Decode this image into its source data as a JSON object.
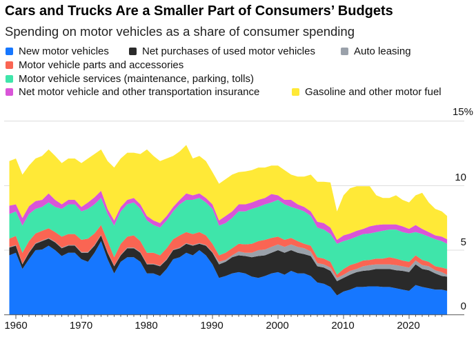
{
  "chart_data": {
    "type": "area",
    "stacked": true,
    "title": "Cars and Trucks Are a Smaller Part of Consumers’ Budgets",
    "subtitle": "Spending on motor vehicles as a share of consumer spending",
    "xlabel": "",
    "ylabel": "",
    "ylim": [
      0,
      15
    ],
    "xlim": [
      1959,
      2026
    ],
    "y_ticks": [
      "0",
      "5",
      "10",
      "15%"
    ],
    "x_ticks": [
      "1960",
      "1970",
      "1980",
      "1990",
      "2000",
      "2010",
      "2020"
    ],
    "grid": "horizontal",
    "legend_position": "top",
    "x": [
      1959,
      1960,
      1961,
      1962,
      1963,
      1964,
      1965,
      1966,
      1967,
      1968,
      1969,
      1970,
      1971,
      1972,
      1973,
      1974,
      1975,
      1976,
      1977,
      1978,
      1979,
      1980,
      1981,
      1982,
      1983,
      1984,
      1985,
      1986,
      1987,
      1988,
      1989,
      1990,
      1991,
      1992,
      1993,
      1994,
      1995,
      1996,
      1997,
      1998,
      1999,
      2000,
      2001,
      2002,
      2003,
      2004,
      2005,
      2006,
      2007,
      2008,
      2009,
      2010,
      2011,
      2012,
      2013,
      2014,
      2015,
      2016,
      2017,
      2018,
      2019,
      2020,
      2021,
      2022,
      2023,
      2024,
      2025,
      2025.8
    ],
    "series": [
      {
        "name": "New motor vehicles",
        "color": "#1677ff",
        "values": [
          4.6,
          4.8,
          3.55,
          4.3,
          5.0,
          5.05,
          5.35,
          5.0,
          4.55,
          4.8,
          4.8,
          4.3,
          4.1,
          4.8,
          5.7,
          4.3,
          3.2,
          4.1,
          4.45,
          4.45,
          4.1,
          3.2,
          3.2,
          3.0,
          3.55,
          4.3,
          4.45,
          4.8,
          4.6,
          5.0,
          4.6,
          3.9,
          2.85,
          3.0,
          3.2,
          3.3,
          3.2,
          2.95,
          2.85,
          3.0,
          3.2,
          3.3,
          3.1,
          3.4,
          3.2,
          3.2,
          3.0,
          2.5,
          2.4,
          2.15,
          1.5,
          1.8,
          1.95,
          2.15,
          2.15,
          2.2,
          2.2,
          2.15,
          2.15,
          2.05,
          1.95,
          1.85,
          2.3,
          2.15,
          2.05,
          1.95,
          1.95,
          1.85
        ]
      },
      {
        "name": "Net purchases of used motor vehicles",
        "color": "#2a2a2a",
        "values": [
          0.6,
          0.55,
          0.35,
          0.5,
          0.5,
          0.65,
          0.55,
          0.6,
          0.6,
          0.55,
          0.55,
          0.5,
          0.7,
          0.55,
          0.45,
          0.5,
          0.55,
          0.5,
          0.7,
          0.7,
          0.7,
          0.7,
          0.7,
          0.75,
          0.7,
          0.7,
          0.7,
          0.7,
          0.75,
          0.5,
          0.75,
          0.9,
          1.05,
          1.1,
          1.25,
          1.3,
          1.35,
          1.5,
          1.7,
          1.6,
          1.6,
          1.7,
          1.7,
          1.6,
          1.6,
          1.5,
          1.55,
          1.25,
          1.25,
          1.25,
          1.1,
          1.05,
          1.15,
          1.15,
          1.25,
          1.25,
          1.35,
          1.4,
          1.4,
          1.4,
          1.45,
          1.45,
          1.6,
          1.4,
          1.4,
          1.25,
          1.05,
          1.1
        ]
      },
      {
        "name": "Auto leasing",
        "color": "#9aa1aa",
        "values": [
          0.05,
          0.05,
          0.05,
          0.05,
          0.05,
          0.05,
          0.05,
          0.05,
          0.05,
          0.05,
          0.05,
          0.05,
          0.05,
          0.05,
          0.05,
          0.05,
          0.05,
          0.05,
          0.05,
          0.05,
          0.05,
          0.05,
          0.05,
          0.05,
          0.05,
          0.05,
          0.05,
          0.05,
          0.05,
          0.05,
          0.05,
          0.05,
          0.2,
          0.15,
          0.15,
          0.3,
          0.25,
          0.35,
          0.45,
          0.45,
          0.45,
          0.45,
          0.45,
          0.45,
          0.45,
          0.45,
          0.35,
          0.25,
          0.25,
          0.25,
          0.25,
          0.25,
          0.3,
          0.25,
          0.35,
          0.4,
          0.35,
          0.35,
          0.35,
          0.4,
          0.35,
          0.35,
          0.3,
          0.3,
          0.3,
          0.25,
          0.3,
          0.15
        ]
      },
      {
        "name": "Motor vehicle parts and accessories",
        "color": "#fa6553",
        "values": [
          0.65,
          0.7,
          0.85,
          0.85,
          0.75,
          0.75,
          0.75,
          0.75,
          0.85,
          0.85,
          0.85,
          0.95,
          1.05,
          0.9,
          0.75,
          0.85,
          0.65,
          0.85,
          0.85,
          0.95,
          0.85,
          0.85,
          0.85,
          0.8,
          0.85,
          0.8,
          0.95,
          0.85,
          0.85,
          0.85,
          0.75,
          0.65,
          0.5,
          0.55,
          0.55,
          0.6,
          0.65,
          0.7,
          0.7,
          0.75,
          0.7,
          0.6,
          0.55,
          0.5,
          0.45,
          0.35,
          0.45,
          0.45,
          0.45,
          0.45,
          0.25,
          0.45,
          0.45,
          0.45,
          0.45,
          0.4,
          0.45,
          0.45,
          0.55,
          0.5,
          0.45,
          0.45,
          0.4,
          0.4,
          0.35,
          0.3,
          0.35,
          0.45
        ]
      },
      {
        "name": "Motor vehicle services (maintenance, parking, tolls)",
        "color": "#3fe5aa",
        "values": [
          1.9,
          1.9,
          2.1,
          2.1,
          1.9,
          1.85,
          2.0,
          1.95,
          2.15,
          2.3,
          2.3,
          2.2,
          2.3,
          2.25,
          2.1,
          2.1,
          2.45,
          2.5,
          2.5,
          2.55,
          2.5,
          2.5,
          2.15,
          2.15,
          2.15,
          2.15,
          2.4,
          2.5,
          2.65,
          2.65,
          2.55,
          2.7,
          2.3,
          2.3,
          2.35,
          2.5,
          2.55,
          2.7,
          2.65,
          2.75,
          2.75,
          2.85,
          2.75,
          2.4,
          2.5,
          2.5,
          2.3,
          2.3,
          2.25,
          2.15,
          2.4,
          2.15,
          2.0,
          2.05,
          2.05,
          2.05,
          2.05,
          2.15,
          2.15,
          2.25,
          2.2,
          2.2,
          1.8,
          2.0,
          1.95,
          2.1,
          2.05,
          1.95
        ]
      },
      {
        "name": "Net motor vehicle and other transportation insurance",
        "color": "#d955d8",
        "values": [
          0.65,
          0.55,
          0.6,
          0.6,
          0.6,
          0.55,
          0.7,
          0.55,
          0.35,
          0.35,
          0.35,
          0.35,
          0.5,
          0.55,
          0.55,
          0.4,
          0.4,
          0.35,
          0.35,
          0.35,
          0.35,
          0.35,
          0.35,
          0.35,
          0.35,
          0.35,
          0.35,
          0.5,
          0.35,
          0.35,
          0.35,
          0.35,
          0.4,
          0.55,
          0.5,
          0.55,
          0.55,
          0.5,
          0.55,
          0.5,
          0.65,
          0.35,
          0.35,
          0.55,
          0.35,
          0.35,
          0.35,
          0.45,
          0.5,
          0.5,
          0.3,
          0.45,
          0.45,
          0.45,
          0.4,
          0.55,
          0.55,
          0.5,
          0.4,
          0.4,
          0.45,
          0.35,
          0.55,
          0.4,
          0.35,
          0.3,
          0.35,
          0.35
        ]
      },
      {
        "name": "Gasoline and other motor fuel",
        "color": "#ffe937",
        "values": [
          3.45,
          3.55,
          3.35,
          3.15,
          3.3,
          3.4,
          3.4,
          3.4,
          3.2,
          3.2,
          3.2,
          3.4,
          3.4,
          3.35,
          3.2,
          3.7,
          4.1,
          3.75,
          3.65,
          3.5,
          3.9,
          5.15,
          5.0,
          4.8,
          4.45,
          3.95,
          3.75,
          3.75,
          2.85,
          2.9,
          2.85,
          2.5,
          2.85,
          2.85,
          2.85,
          2.5,
          2.55,
          2.5,
          2.5,
          2.35,
          2.2,
          2.3,
          2.3,
          1.95,
          2.15,
          2.35,
          2.85,
          3.1,
          3.2,
          3.5,
          2.2,
          3.1,
          3.5,
          3.45,
          3.3,
          3.1,
          2.3,
          2.05,
          2.05,
          2.25,
          2.05,
          2.05,
          2.3,
          2.8,
          2.3,
          2.05,
          1.95,
          1.8
        ]
      }
    ]
  }
}
